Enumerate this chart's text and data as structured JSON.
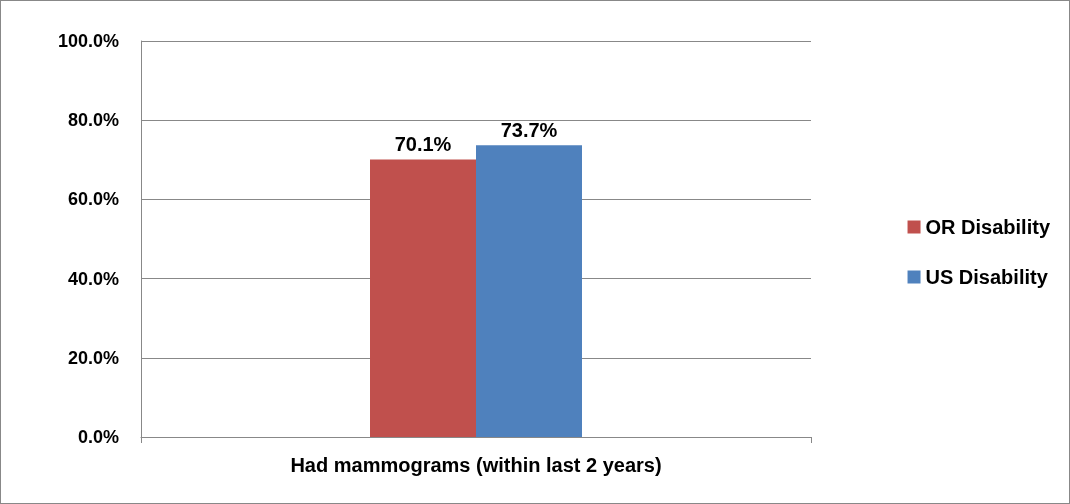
{
  "chart_data": {
    "type": "bar",
    "categories": [
      "Had mammograms (within last 2 years)"
    ],
    "series": [
      {
        "name": "OR Disability",
        "color": "#c0504d",
        "values": [
          70.1
        ],
        "value_labels": [
          "70.1%"
        ]
      },
      {
        "name": "US Disability",
        "color": "#4f81bd",
        "values": [
          73.7
        ],
        "value_labels": [
          "73.7%"
        ]
      }
    ],
    "ylim": [
      0,
      100
    ],
    "yticks": [
      {
        "value": 0,
        "label": "0.0%"
      },
      {
        "value": 20,
        "label": "20.0%"
      },
      {
        "value": 40,
        "label": "40.0%"
      },
      {
        "value": 60,
        "label": "60.0%"
      },
      {
        "value": 80,
        "label": "80.0%"
      },
      {
        "value": 100,
        "label": "100.0%"
      }
    ],
    "grid": "y",
    "legend": "right"
  }
}
